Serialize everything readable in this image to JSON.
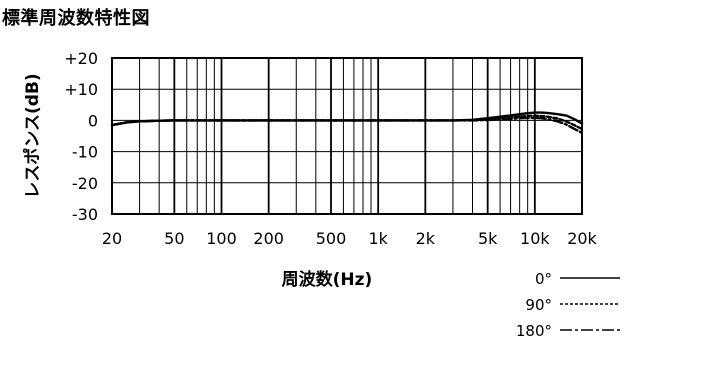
{
  "chart_data": {
    "type": "line",
    "title": "標準周波数特性図",
    "xlabel": "周波数(Hz)",
    "ylabel": "レスポンス(dB)",
    "xscale": "log",
    "xlim": [
      20,
      20000
    ],
    "ylim": [
      -30,
      20
    ],
    "x_ticks": [
      20,
      50,
      100,
      200,
      500,
      1000,
      2000,
      5000,
      10000,
      20000
    ],
    "x_tick_labels": [
      "20",
      "50",
      "100",
      "200",
      "500",
      "1k",
      "2k",
      "5k",
      "10k",
      "20k"
    ],
    "y_ticks": [
      20,
      10,
      0,
      -10,
      -20,
      -30
    ],
    "y_tick_labels": [
      "+20",
      "+10",
      "0",
      "-10",
      "-20",
      "-30"
    ],
    "grid": true,
    "legend_position": "bottom-right",
    "series": [
      {
        "name": "0°",
        "dash": "solid",
        "x": [
          20,
          25,
          30,
          40,
          50,
          100,
          200,
          500,
          1000,
          2000,
          3000,
          4000,
          5000,
          6000,
          7000,
          8000,
          9000,
          10000,
          11000,
          12000,
          14000,
          16000,
          18000,
          20000
        ],
        "y": [
          -1.5,
          -0.6,
          -0.3,
          -0.1,
          0,
          0,
          0,
          0,
          0,
          0,
          0,
          0.2,
          0.7,
          1.2,
          1.6,
          2.0,
          2.3,
          2.5,
          2.5,
          2.4,
          2.0,
          1.5,
          0.3,
          -1.0
        ]
      },
      {
        "name": "90°",
        "dash": "dashed",
        "x": [
          20,
          25,
          30,
          40,
          50,
          100,
          200,
          500,
          1000,
          2000,
          3000,
          4000,
          5000,
          6000,
          7000,
          8000,
          9000,
          10000,
          11000,
          12000,
          14000,
          16000,
          18000,
          20000
        ],
        "y": [
          -1.5,
          -0.6,
          -0.3,
          -0.1,
          0,
          0,
          0,
          0,
          0,
          0,
          0,
          0.1,
          0.4,
          0.7,
          1.0,
          1.2,
          1.4,
          1.5,
          1.4,
          1.2,
          0.6,
          -0.4,
          -1.6,
          -2.8
        ]
      },
      {
        "name": "180°",
        "dash": "dash-dot",
        "x": [
          20,
          25,
          30,
          40,
          50,
          100,
          200,
          500,
          1000,
          2000,
          3000,
          4000,
          5000,
          6000,
          7000,
          8000,
          9000,
          10000,
          11000,
          12000,
          14000,
          16000,
          18000,
          20000
        ],
        "y": [
          -1.5,
          -0.6,
          -0.3,
          -0.1,
          0,
          0,
          0,
          0,
          0,
          0,
          0,
          0,
          0.1,
          0.3,
          0.5,
          0.7,
          0.8,
          0.8,
          0.7,
          0.4,
          -0.3,
          -1.4,
          -2.8,
          -4.0
        ]
      }
    ]
  }
}
